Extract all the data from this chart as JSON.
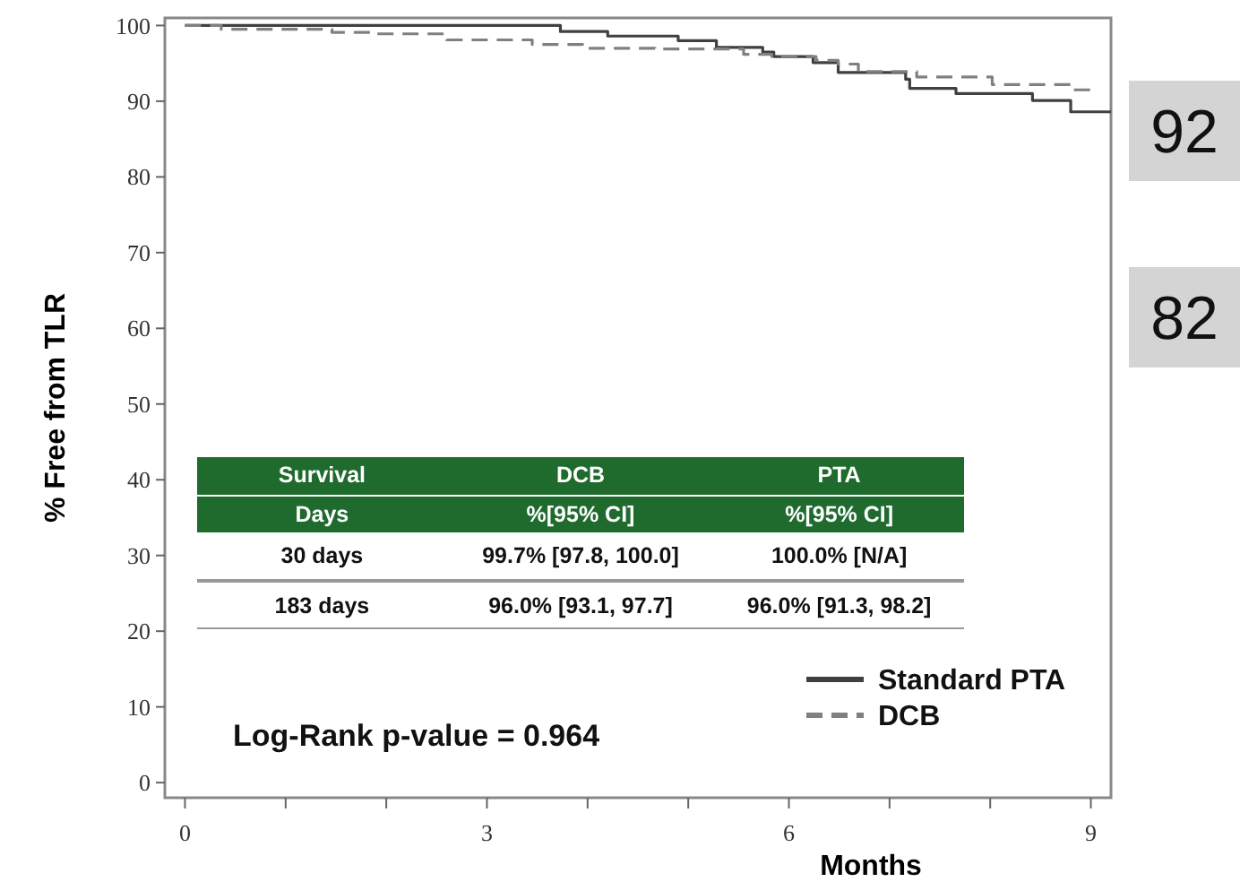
{
  "chart_data": {
    "type": "step",
    "xlabel": "Months",
    "ylabel": "% Free from TLR",
    "xlim": [
      -0.2,
      9.2
    ],
    "ylim": [
      -2,
      101
    ],
    "xticks": [
      0,
      {
        "value": 1,
        "label": null
      },
      {
        "value": 2,
        "label": null
      },
      3,
      {
        "value": 4,
        "label": null
      },
      {
        "value": 5,
        "label": null
      },
      6,
      {
        "value": 7,
        "label": null
      },
      {
        "value": 8,
        "label": null
      },
      9
    ],
    "yticks": [
      0,
      10,
      20,
      30,
      40,
      50,
      60,
      70,
      80,
      90,
      100
    ],
    "legend": "bottom right",
    "grid": false,
    "series": [
      {
        "name": "Standard PTA",
        "color": "#404040",
        "line_style": "solid",
        "x": [
          0,
          3.73,
          4.2,
          4.9,
          5.28,
          5.74,
          5.85,
          6.24,
          6.49,
          7.16,
          7.2,
          7.66,
          8.42,
          8.8,
          9.2
        ],
        "values": [
          100,
          99.2,
          98.6,
          98.0,
          97.1,
          96.5,
          95.9,
          95.1,
          93.8,
          92.9,
          91.7,
          91.0,
          90.1,
          88.6,
          88.6
        ]
      },
      {
        "name": "DCB",
        "color": "#808080",
        "line_style": "dashed",
        "x": [
          0,
          0.36,
          1.46,
          1.88,
          2.6,
          3.45,
          3.95,
          4.67,
          5.55,
          5.83,
          6.27,
          6.49,
          6.69,
          7.27,
          8.02,
          8.8,
          9.05
        ],
        "values": [
          100,
          99.5,
          99.1,
          98.9,
          98.1,
          97.5,
          97.0,
          96.9,
          96.2,
          95.9,
          95.4,
          94.9,
          93.9,
          93.2,
          92.2,
          91.5,
          91.5
        ]
      }
    ],
    "annotations": [
      "Survival",
      "DCB",
      "PTA",
      "Days",
      "%[95% CI]",
      "%[95% CI]",
      "30 days",
      "99.7%  [97.8, 100.0]",
      "100.0%  [N/A]",
      "183 days",
      "96.0%  [93.1, 97.7]",
      "96.0%  [91.3, 98.2]",
      "Log-Rank p-value = 0.964",
      "92",
      "82"
    ]
  }
}
